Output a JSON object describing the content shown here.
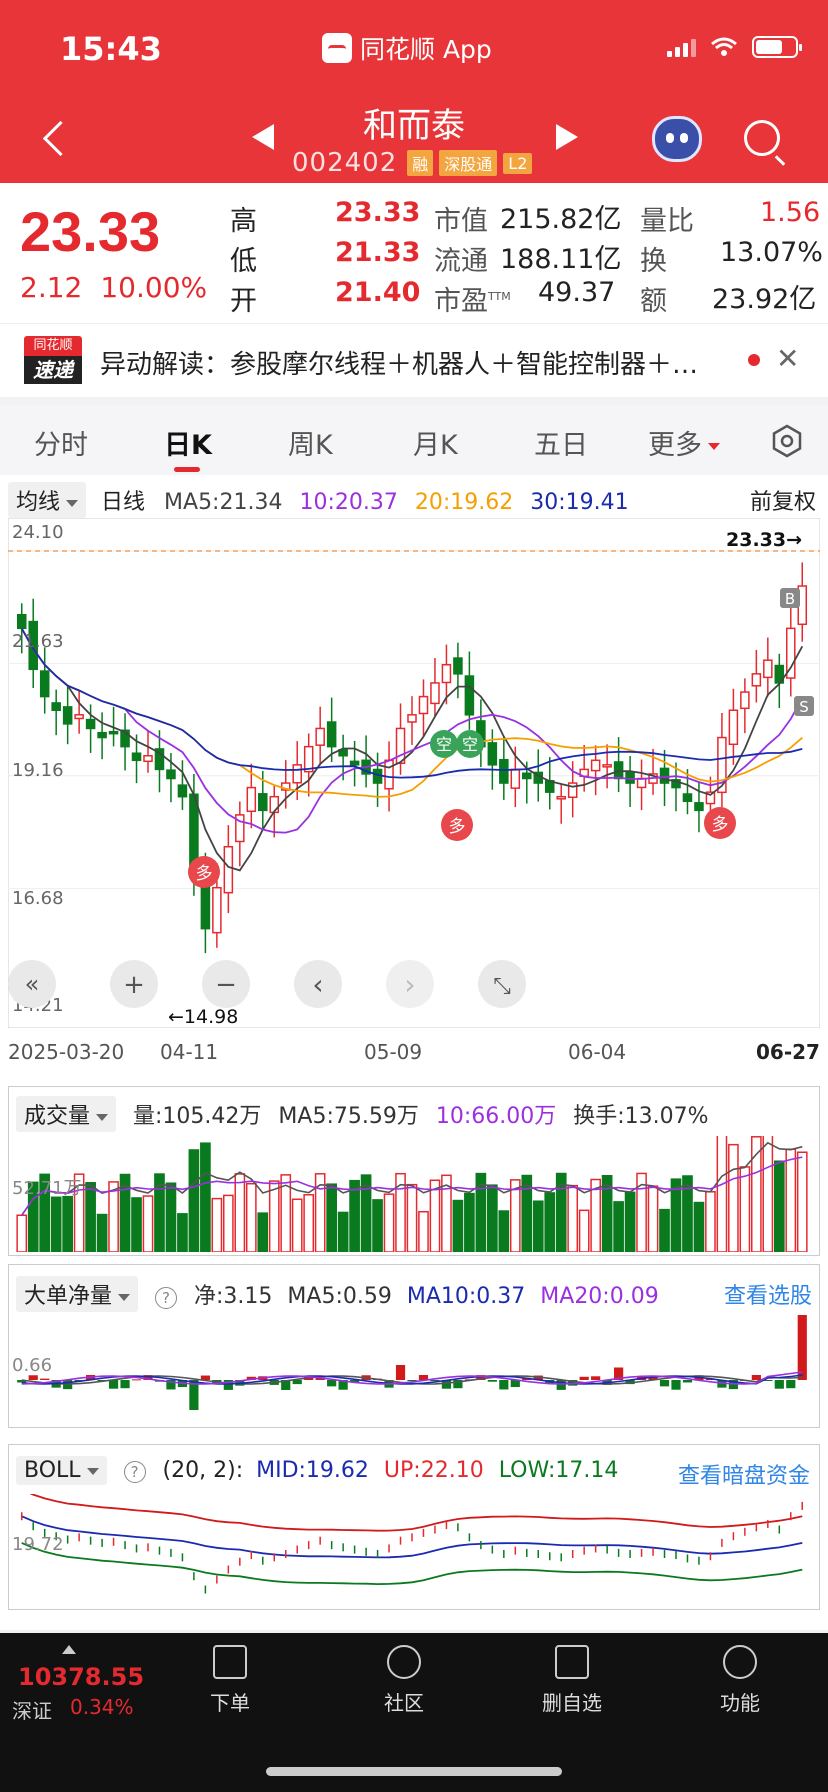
{
  "status": {
    "time": "15:43",
    "app": "同花顺 App"
  },
  "header": {
    "name": "和而泰",
    "code": "002402",
    "tags": [
      "融",
      "深股通",
      "L2"
    ]
  },
  "quote": {
    "price": "23.33",
    "change": "2.12",
    "pct": "10.00%",
    "high_label": "高",
    "high": "23.33",
    "low_label": "低",
    "low": "21.33",
    "open_label": "开",
    "open": "21.40",
    "mcap_label": "市值",
    "mcap": "215.82亿",
    "float_label": "流通",
    "float": "188.11亿",
    "pe_label": "市盈",
    "pe_sup": "TTM",
    "pe": "49.37",
    "vr_label": "量比",
    "vr": "1.56",
    "turn_label": "换",
    "turn": "13.07%",
    "amt_label": "额",
    "amt": "23.92亿"
  },
  "news": {
    "logo_top": "同花顺",
    "logo_bottom": "速递",
    "text": "异动解读：参股摩尔线程＋机器人＋智能控制器＋…",
    "close": "✕"
  },
  "tabs": [
    "分时",
    "日K",
    "周K",
    "月K",
    "五日",
    "更多"
  ],
  "kline": {
    "indicator": "均线",
    "period": "日线",
    "ma5": "MA5:21.34",
    "ma10": "10:20.37",
    "ma20": "20:19.62",
    "ma30": "30:19.41",
    "adjust": "前复权",
    "y_ticks": [
      "24.10",
      "21.63",
      "19.16",
      "16.68",
      "14.21"
    ],
    "last_price_label": "23.33→",
    "low_label": "←14.98",
    "dates": [
      "2025-03-20",
      "04-11",
      "05-09",
      "06-04",
      "06-27"
    ],
    "controls": [
      "«",
      "+",
      "−",
      "‹",
      "›",
      "⤡"
    ],
    "signal_buy": "多",
    "signal_sell": "空",
    "mark_b": "B",
    "mark_s": "S"
  },
  "volume": {
    "indicator": "成交量",
    "vol": "量:105.42万",
    "ma5": "MA5:75.59万",
    "ma10": "10:66.00万",
    "turn": "换手:13.07%",
    "y_tick": "52.71万"
  },
  "bigorder": {
    "indicator": "大单净量",
    "net": "净:3.15",
    "ma5": "MA5:0.59",
    "ma10": "MA10:0.37",
    "ma20": "MA20:0.09",
    "link": "查看选股",
    "y_tick": "0.66"
  },
  "boll": {
    "indicator": "BOLL",
    "params": "(20, 2):",
    "mid": "MID:19.62",
    "up": "UP:22.10",
    "low": "LOW:17.14",
    "link": "查看暗盘资金",
    "y_tick": "19.72"
  },
  "bottom": {
    "index_value": "10378.55",
    "index_name": "深证",
    "index_pct": "0.34%",
    "nav": [
      "下单",
      "社区",
      "删自选",
      "功能"
    ]
  },
  "colors": {
    "up": "#e52a2f",
    "down": "#0a7a1f",
    "ma5": "#444444",
    "ma10": "#9b30e0",
    "ma20": "#f5a000",
    "ma30": "#1a2bb0"
  }
}
